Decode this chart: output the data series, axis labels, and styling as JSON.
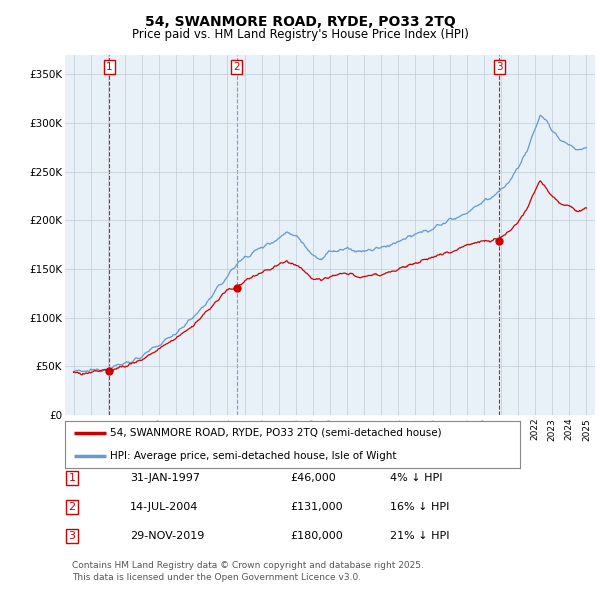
{
  "title": "54, SWANMORE ROAD, RYDE, PO33 2TQ",
  "subtitle": "Price paid vs. HM Land Registry's House Price Index (HPI)",
  "background_color": "#ffffff",
  "plot_bg_color": "#e8f0f8",
  "grid_color": "#c0ccd8",
  "hpi_color": "#6699cc",
  "price_color": "#cc0000",
  "transactions": [
    {
      "num": 1,
      "date": "31-JAN-1997",
      "price": 46000,
      "year": 1997.08,
      "hpi_pct": "4% ↓ HPI",
      "vline_color": "#cc0000"
    },
    {
      "num": 2,
      "date": "14-JUL-2004",
      "price": 131000,
      "year": 2004.54,
      "hpi_pct": "16% ↓ HPI",
      "vline_color": "#6699cc"
    },
    {
      "num": 3,
      "date": "29-NOV-2019",
      "price": 180000,
      "year": 2019.91,
      "hpi_pct": "21% ↓ HPI",
      "vline_color": "#cc0000"
    }
  ],
  "ylim": [
    0,
    370000
  ],
  "xlim": [
    1994.5,
    2025.5
  ],
  "yticks": [
    0,
    50000,
    100000,
    150000,
    200000,
    250000,
    300000,
    350000
  ],
  "ytick_labels": [
    "£0",
    "£50K",
    "£100K",
    "£150K",
    "£200K",
    "£250K",
    "£300K",
    "£350K"
  ],
  "legend_line1": "54, SWANMORE ROAD, RYDE, PO33 2TQ (semi-detached house)",
  "legend_line2": "HPI: Average price, semi-detached house, Isle of Wight",
  "footer": "Contains HM Land Registry data © Crown copyright and database right 2025.\nThis data is licensed under the Open Government Licence v3.0."
}
